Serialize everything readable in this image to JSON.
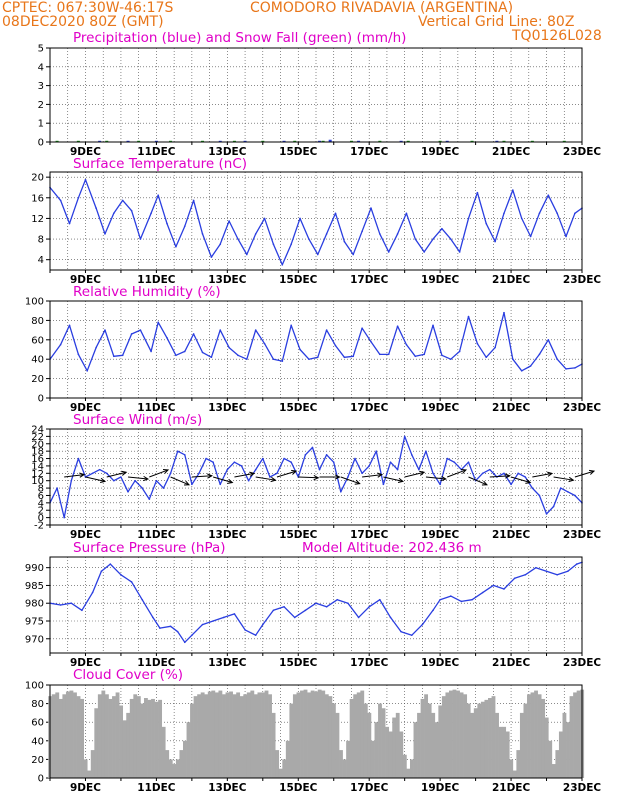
{
  "header": {
    "line1_left": "CPTEC:   067:30W-46:17S",
    "line1_right": "COMODORO RIVADAVIA (ARGENTINA)",
    "line2_left": "08DEC2020 80Z (GMT)",
    "line2_right": "Vertical Grid Line: 80Z",
    "code": "TQ0126L028"
  },
  "colors": {
    "header_text": "#e8761a",
    "panel_title": "#e000c8",
    "line": "#2a3ee0",
    "precip": "#2a3ee0",
    "snow": "#1a9a1a",
    "wind_arrow": "#000000",
    "cloud": "#a9a9a9"
  },
  "x_axis": {
    "tick_labels": [
      "9DEC",
      "11DEC",
      "13DEC",
      "15DEC",
      "17DEC",
      "19DEC",
      "21DEC",
      "23DEC"
    ]
  },
  "chart_data": [
    {
      "type": "bar",
      "title": "Precipitation (blue) and Snow Fall (green) (mm/h)",
      "ylim": [
        0,
        5
      ],
      "yticks": [
        "0",
        "1",
        "2",
        "3",
        "4",
        "5"
      ],
      "series": [
        {
          "name": "Precipitation",
          "color": "blue",
          "x": [
            9.4,
            10.2,
            11.0,
            12.8,
            13.5,
            14.6,
            15.6,
            15.9,
            16.7,
            17.9,
            19.2,
            20.6
          ],
          "values": [
            0.02,
            0.01,
            0.05,
            0.02,
            0.03,
            0.03,
            0.05,
            0.12,
            0.03,
            0.06,
            0.03,
            0.02
          ]
        },
        {
          "name": "Snow Fall",
          "color": "green",
          "x": [
            8.2,
            8.8,
            9.6,
            10.5,
            11.4,
            12.3,
            13.2,
            14.0,
            14.9,
            15.7,
            16.5,
            17.3,
            18.1,
            19.0,
            19.9,
            20.8,
            21.6,
            22.5
          ],
          "values": [
            0.02,
            0.02,
            0.02,
            0.02,
            0.02,
            0.02,
            0.02,
            0.02,
            0.02,
            0.02,
            0.02,
            0.02,
            0.02,
            0.02,
            0.02,
            0.02,
            0.02,
            0.02
          ]
        }
      ]
    },
    {
      "type": "line",
      "title": "Surface Temperature (nC)",
      "ylim": [
        2,
        21
      ],
      "yticks": [
        "4",
        "8",
        "12",
        "16",
        "20"
      ],
      "x": [
        8.0,
        8.3,
        8.55,
        8.8,
        9.0,
        9.3,
        9.55,
        9.8,
        10.05,
        10.3,
        10.55,
        10.85,
        11.05,
        11.3,
        11.55,
        11.8,
        12.05,
        12.3,
        12.55,
        12.8,
        13.05,
        13.3,
        13.55,
        13.8,
        14.05,
        14.3,
        14.55,
        14.8,
        15.05,
        15.3,
        15.55,
        15.8,
        16.05,
        16.3,
        16.55,
        16.8,
        17.05,
        17.3,
        17.55,
        17.8,
        18.05,
        18.3,
        18.55,
        18.8,
        19.05,
        19.3,
        19.55,
        19.8,
        20.05,
        20.3,
        20.55,
        20.8,
        21.05,
        21.3,
        21.55,
        21.8,
        22.05,
        22.3,
        22.55,
        22.8,
        23.0
      ],
      "values": [
        18,
        15.5,
        11,
        16,
        19.5,
        14,
        9,
        13,
        15.5,
        13.5,
        8,
        13,
        16.5,
        11,
        6.5,
        10.5,
        15.5,
        9,
        4.5,
        7,
        11.5,
        8,
        5,
        9,
        12,
        7,
        3,
        7,
        12,
        8,
        5,
        9,
        13,
        7.5,
        5,
        9.5,
        14,
        9,
        5.5,
        9,
        13,
        8,
        5.5,
        8,
        10,
        8,
        5.5,
        12,
        17,
        11,
        7.5,
        13,
        17.5,
        12,
        8.5,
        13,
        16.5,
        13,
        8.5,
        13,
        14
      ]
    },
    {
      "type": "line",
      "title": "Relative Humidity (%)",
      "ylim": [
        0,
        100
      ],
      "yticks": [
        "0",
        "20",
        "40",
        "60",
        "80",
        "100"
      ],
      "x": [
        8.0,
        8.3,
        8.55,
        8.8,
        9.05,
        9.3,
        9.55,
        9.8,
        10.05,
        10.3,
        10.55,
        10.85,
        11.05,
        11.3,
        11.55,
        11.8,
        12.05,
        12.3,
        12.55,
        12.8,
        13.05,
        13.3,
        13.55,
        13.8,
        14.05,
        14.3,
        14.55,
        14.8,
        15.05,
        15.3,
        15.55,
        15.8,
        16.05,
        16.3,
        16.55,
        16.8,
        17.05,
        17.3,
        17.55,
        17.8,
        18.05,
        18.3,
        18.55,
        18.8,
        19.05,
        19.3,
        19.55,
        19.8,
        20.05,
        20.3,
        20.55,
        20.8,
        21.05,
        21.3,
        21.55,
        21.8,
        22.05,
        22.3,
        22.55,
        22.8,
        23.0
      ],
      "values": [
        40,
        55,
        75,
        45,
        28,
        52,
        70,
        43,
        44,
        66,
        70,
        48,
        78,
        62,
        44,
        48,
        66,
        47,
        42,
        70,
        52,
        44,
        40,
        70,
        56,
        40,
        38,
        75,
        50,
        40,
        42,
        70,
        54,
        42,
        43,
        72,
        58,
        45,
        45,
        74,
        55,
        43,
        45,
        75,
        44,
        40,
        48,
        84,
        56,
        42,
        52,
        88,
        40,
        28,
        33,
        45,
        60,
        40,
        30,
        31,
        35
      ]
    },
    {
      "type": "line",
      "title": "Surface Wind (m/s)",
      "ylim": [
        -2,
        24
      ],
      "yticks": [
        "-2",
        "0",
        "2",
        "4",
        "6",
        "8",
        "10",
        "12",
        "14",
        "16",
        "18",
        "20",
        "22",
        "24"
      ],
      "x": [
        8.0,
        8.2,
        8.4,
        8.6,
        8.8,
        9.0,
        9.2,
        9.4,
        9.6,
        9.8,
        10.0,
        10.2,
        10.4,
        10.6,
        10.8,
        11.0,
        11.2,
        11.4,
        11.6,
        11.8,
        12.0,
        12.2,
        12.4,
        12.6,
        12.8,
        13.0,
        13.2,
        13.4,
        13.6,
        13.8,
        14.0,
        14.2,
        14.4,
        14.6,
        14.8,
        15.0,
        15.2,
        15.4,
        15.6,
        15.8,
        16.0,
        16.2,
        16.4,
        16.6,
        16.8,
        17.0,
        17.2,
        17.4,
        17.6,
        17.8,
        18.0,
        18.2,
        18.4,
        18.6,
        18.8,
        19.0,
        19.2,
        19.4,
        19.6,
        19.8,
        20.0,
        20.2,
        20.4,
        20.6,
        20.8,
        21.0,
        21.2,
        21.4,
        21.6,
        21.8,
        22.0,
        22.2,
        22.4,
        22.6,
        22.8,
        23.0
      ],
      "values": [
        4,
        8,
        0,
        10,
        16,
        11,
        12,
        13,
        12,
        10,
        11,
        7,
        10,
        8,
        5,
        10,
        8,
        12,
        18,
        17,
        9,
        12,
        16,
        15,
        9,
        13,
        15,
        14,
        10,
        13,
        16,
        11,
        12,
        16,
        15,
        11,
        17,
        19,
        13,
        17,
        15,
        7,
        11,
        16,
        12,
        14,
        18,
        9,
        15,
        13,
        22,
        17,
        13,
        18,
        12,
        9,
        16,
        15,
        13,
        15,
        10,
        12,
        13,
        11,
        12,
        9,
        12,
        11,
        8,
        6,
        1,
        3,
        8,
        7,
        6,
        4
      ]
    },
    {
      "type": "line",
      "title": "Surface Pressure (hPa)",
      "annotation": "Model Altitude: 202.436 m",
      "ylim": [
        966,
        993
      ],
      "yticks": [
        "970",
        "975",
        "980",
        "985",
        "990"
      ],
      "x": [
        8.0,
        8.3,
        8.6,
        8.9,
        9.2,
        9.45,
        9.7,
        10.0,
        10.3,
        10.6,
        10.9,
        11.1,
        11.4,
        11.6,
        11.8,
        12.0,
        12.3,
        12.6,
        12.9,
        13.2,
        13.5,
        13.8,
        14.0,
        14.3,
        14.6,
        14.9,
        15.2,
        15.5,
        15.8,
        16.1,
        16.4,
        16.7,
        17.0,
        17.3,
        17.6,
        17.9,
        18.2,
        18.5,
        18.8,
        19.0,
        19.3,
        19.6,
        19.9,
        20.2,
        20.5,
        20.8,
        21.1,
        21.4,
        21.7,
        22.0,
        22.3,
        22.6,
        22.85,
        23.0
      ],
      "values": [
        980,
        979.5,
        980,
        978,
        983,
        989,
        991,
        988,
        986,
        981,
        976,
        973,
        973.5,
        972,
        969,
        971,
        974,
        975,
        976,
        977,
        972.5,
        971,
        974,
        978,
        979,
        976,
        978,
        980,
        979,
        981,
        980,
        976,
        979,
        981,
        976,
        972,
        971,
        974,
        978,
        981,
        982,
        980.5,
        981,
        983,
        985,
        984,
        987,
        988,
        990,
        989,
        988,
        989,
        991,
        991.5
      ]
    },
    {
      "type": "bar",
      "title": "Cloud Cover (%)",
      "ylim": [
        0,
        100
      ],
      "yticks": [
        "0",
        "20",
        "40",
        "60",
        "80",
        "100"
      ],
      "x": [
        8.0,
        8.1,
        8.2,
        8.3,
        8.4,
        8.5,
        8.6,
        8.7,
        8.8,
        8.9,
        9.0,
        9.1,
        9.2,
        9.3,
        9.4,
        9.5,
        9.6,
        9.7,
        9.8,
        9.9,
        10.0,
        10.1,
        10.2,
        10.3,
        10.4,
        10.5,
        10.6,
        10.7,
        10.8,
        10.9,
        11.0,
        11.1,
        11.2,
        11.3,
        11.4,
        11.5,
        11.6,
        11.7,
        11.8,
        11.9,
        12.0,
        12.1,
        12.2,
        12.3,
        12.4,
        12.5,
        12.6,
        12.7,
        12.8,
        12.9,
        13.0,
        13.1,
        13.2,
        13.3,
        13.4,
        13.5,
        13.6,
        13.7,
        13.8,
        13.9,
        14.0,
        14.1,
        14.2,
        14.3,
        14.4,
        14.5,
        14.6,
        14.7,
        14.8,
        14.9,
        15.0,
        15.1,
        15.2,
        15.3,
        15.4,
        15.5,
        15.6,
        15.7,
        15.8,
        15.9,
        16.0,
        16.1,
        16.2,
        16.3,
        16.4,
        16.5,
        16.6,
        16.7,
        16.8,
        16.9,
        17.0,
        17.1,
        17.2,
        17.3,
        17.4,
        17.5,
        17.6,
        17.7,
        17.8,
        17.9,
        18.0,
        18.1,
        18.2,
        18.3,
        18.4,
        18.5,
        18.6,
        18.7,
        18.8,
        18.9,
        19.0,
        19.1,
        19.2,
        19.3,
        19.4,
        19.5,
        19.6,
        19.7,
        19.8,
        19.9,
        20.0,
        20.1,
        20.2,
        20.3,
        20.4,
        20.5,
        20.6,
        20.7,
        20.8,
        20.9,
        21.0,
        21.1,
        21.2,
        21.3,
        21.4,
        21.5,
        21.6,
        21.7,
        21.8,
        21.9,
        22.0,
        22.1,
        22.2,
        22.3,
        22.4,
        22.5,
        22.6,
        22.7,
        22.8,
        22.9,
        23.0
      ],
      "values": [
        88,
        90,
        92,
        85,
        90,
        93,
        94,
        92,
        88,
        85,
        20,
        8,
        30,
        75,
        90,
        94,
        90,
        85,
        88,
        92,
        78,
        62,
        70,
        85,
        90,
        88,
        80,
        86,
        84,
        85,
        82,
        84,
        55,
        30,
        20,
        15,
        20,
        30,
        40,
        60,
        80,
        88,
        90,
        92,
        90,
        93,
        94,
        92,
        94,
        90,
        92,
        93,
        90,
        92,
        88,
        90,
        92,
        94,
        90,
        92,
        92,
        94,
        90,
        70,
        30,
        10,
        20,
        40,
        80,
        90,
        92,
        94,
        95,
        92,
        94,
        93,
        95,
        94,
        90,
        88,
        80,
        70,
        30,
        20,
        40,
        85,
        90,
        92,
        94,
        80,
        70,
        40,
        60,
        80,
        75,
        55,
        50,
        65,
        70,
        50,
        25,
        10,
        20,
        60,
        70,
        85,
        90,
        80,
        70,
        60,
        78,
        88,
        92,
        94,
        95,
        94,
        92,
        90,
        80,
        70,
        75,
        80,
        82,
        84,
        86,
        88,
        70,
        55,
        55,
        50,
        20,
        8,
        30,
        70,
        80,
        90,
        92,
        94,
        90,
        85,
        65,
        40,
        15,
        30,
        50,
        70,
        60,
        88,
        92,
        94,
        95
      ]
    }
  ]
}
